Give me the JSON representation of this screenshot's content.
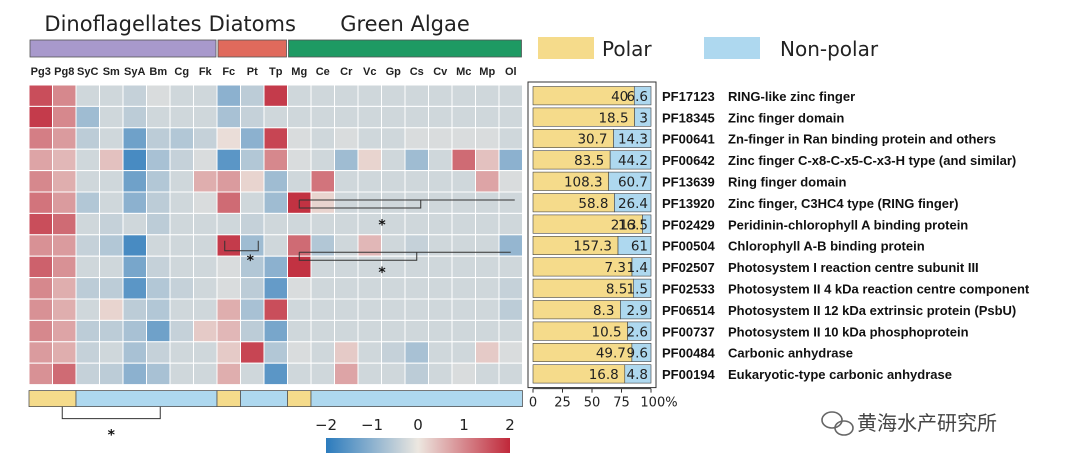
{
  "chart_data": {
    "type": "heatmap",
    "groups": [
      {
        "name": "Dinoflagellates",
        "color": "#a899cc",
        "columns": [
          "Pg3",
          "Pg8",
          "SyC",
          "Sm",
          "SyA",
          "Bm",
          "Cg",
          "Fk"
        ]
      },
      {
        "name": "Diatoms",
        "color": "#e06a5c",
        "columns": [
          "Fc",
          "Pt",
          "Tp"
        ]
      },
      {
        "name": "Green Algae",
        "color": "#1e9a63",
        "columns": [
          "Mg",
          "Ce",
          "Cr",
          "Vc",
          "Gp",
          "Cs",
          "Cv",
          "Mc",
          "Mp",
          "Ol"
        ]
      }
    ],
    "columns": [
      "Pg3",
      "Pg8",
      "SyC",
      "Sm",
      "SyA",
      "Bm",
      "Cg",
      "Fk",
      "Fc",
      "Pt",
      "Tp",
      "Mg",
      "Ce",
      "Cr",
      "Vc",
      "Gp",
      "Cs",
      "Cv",
      "Mc",
      "Mp",
      "Ol"
    ],
    "rows": [
      {
        "pfam": "PF17123",
        "description": "RING-like zinc finger",
        "polar": 40,
        "nonpolar": 6.6,
        "polar_label": "40",
        "nonpolar_label": "6.6"
      },
      {
        "pfam": "PF18345",
        "description": "Zinc finger domain",
        "polar": 18.5,
        "nonpolar": 3,
        "polar_label": "18.5",
        "nonpolar_label": "3"
      },
      {
        "pfam": "PF00641",
        "description": "Zn-finger in Ran binding protein and others",
        "polar": 30.7,
        "nonpolar": 14.3,
        "polar_label": "30.7",
        "nonpolar_label": "14.3"
      },
      {
        "pfam": "PF00642",
        "description": "Zinc finger C-x8-C-x5-C-x3-H type (and similar)",
        "polar": 83.5,
        "nonpolar": 44.2,
        "polar_label": "83.5",
        "nonpolar_label": "44.2"
      },
      {
        "pfam": "PF13639",
        "description": "Ring finger domain",
        "polar": 108.3,
        "nonpolar": 60.7,
        "polar_label": "108.3",
        "nonpolar_label": "60.7"
      },
      {
        "pfam": "PF13920",
        "description": "Zinc finger, C3HC4 type (RING finger)",
        "polar": 58.8,
        "nonpolar": 26.4,
        "polar_label": "58.8",
        "nonpolar_label": "26.4"
      },
      {
        "pfam": "PF02429",
        "description": "Peridinin-chlorophyll A binding protein",
        "polar": 213,
        "nonpolar": 16.5,
        "polar_label": "213",
        "nonpolar_label": "16.5"
      },
      {
        "pfam": "PF00504",
        "description": "Chlorophyll A-B binding protein",
        "polar": 157.3,
        "nonpolar": 61,
        "polar_label": "157.3",
        "nonpolar_label": "61"
      },
      {
        "pfam": "PF02507",
        "description": "Photosystem I reaction centre subunit III",
        "polar": 7.3,
        "nonpolar": 1.4,
        "polar_label": "7.3",
        "nonpolar_label": "1.4"
      },
      {
        "pfam": "PF02533",
        "description": "Photosystem II 4 kDa reaction centre component",
        "polar": 8.5,
        "nonpolar": 1.5,
        "polar_label": "8.5",
        "nonpolar_label": "1.5"
      },
      {
        "pfam": "PF06514",
        "description": "Photosystem II 12 kDa extrinsic protein (PsbU)",
        "polar": 8.3,
        "nonpolar": 2.9,
        "polar_label": "8.3",
        "nonpolar_label": "2.9"
      },
      {
        "pfam": "PF00737",
        "description": "Photosystem II 10 kDa phosphoprotein",
        "polar": 10.5,
        "nonpolar": 2.6,
        "polar_label": "10.5",
        "nonpolar_label": "2.6"
      },
      {
        "pfam": "PF00484",
        "description": "Carbonic anhydrase",
        "polar": 49.7,
        "nonpolar": 9.6,
        "polar_label": "49.7",
        "nonpolar_label": "9.6"
      },
      {
        "pfam": "PF00194",
        "description": "Eukaryotic-type carbonic anhydrase",
        "polar": 16.8,
        "nonpolar": 4.8,
        "polar_label": "16.8",
        "nonpolar_label": "4.8"
      }
    ],
    "matrix": [
      [
        1.6,
        1.0,
        -0.3,
        -0.3,
        -0.4,
        -0.2,
        -0.3,
        -0.3,
        -1.0,
        -0.5,
        1.8,
        -0.3,
        -0.3,
        -0.3,
        -0.3,
        -0.3,
        -0.3,
        -0.3,
        -0.3,
        -0.3,
        -0.3
      ],
      [
        1.8,
        1.0,
        -0.8,
        -0.3,
        -0.5,
        -0.3,
        -0.3,
        -0.3,
        -0.7,
        -0.4,
        -0.3,
        -0.3,
        -0.3,
        -0.3,
        -0.3,
        -0.3,
        -0.3,
        -0.3,
        -0.3,
        -0.3,
        -0.3
      ],
      [
        1.1,
        0.8,
        -0.5,
        -0.3,
        -1.3,
        -0.5,
        -0.6,
        -0.4,
        0.1,
        -1.0,
        1.7,
        -0.2,
        -0.3,
        -0.2,
        -0.3,
        -0.3,
        -0.2,
        -0.2,
        -0.2,
        -0.2,
        -0.3
      ],
      [
        0.7,
        0.5,
        -0.3,
        0.4,
        -1.7,
        -0.7,
        -0.4,
        -0.2,
        -1.5,
        -0.6,
        1.0,
        -0.2,
        -0.3,
        -0.8,
        0.2,
        -0.3,
        -0.8,
        -0.3,
        1.3,
        0.4,
        -1.0
      ],
      [
        1.0,
        0.6,
        -0.3,
        -0.3,
        -1.3,
        -0.6,
        -0.3,
        0.6,
        0.8,
        0.2,
        -0.8,
        -0.3,
        1.2,
        -0.3,
        -0.3,
        -0.3,
        -0.3,
        -0.3,
        -0.3,
        0.7,
        -0.2
      ],
      [
        1.2,
        0.8,
        -0.6,
        -0.3,
        -1.0,
        -0.5,
        -0.3,
        -0.2,
        1.3,
        -0.3,
        -0.8,
        1.9,
        0.2,
        -0.3,
        -0.3,
        -0.3,
        -0.3,
        -0.3,
        -0.3,
        -0.3,
        -0.3
      ],
      [
        1.6,
        1.3,
        -0.3,
        -0.4,
        -0.3,
        -0.5,
        -0.3,
        -0.3,
        -0.3,
        -0.4,
        -0.3,
        -0.3,
        -0.3,
        -0.3,
        -0.3,
        -0.3,
        -0.3,
        -0.3,
        -0.3,
        -0.3,
        -0.3
      ],
      [
        0.9,
        0.8,
        -0.4,
        -0.6,
        -1.7,
        -0.3,
        -0.3,
        -0.3,
        1.8,
        -0.8,
        -0.3,
        1.3,
        -0.6,
        -0.3,
        0.5,
        -0.3,
        -0.4,
        -0.3,
        -0.3,
        -0.3,
        -0.9
      ],
      [
        1.4,
        0.9,
        -0.3,
        -0.3,
        -1.2,
        -0.4,
        -0.3,
        -0.3,
        -0.2,
        -0.6,
        -1.0,
        1.9,
        -0.3,
        -0.3,
        -0.3,
        -0.3,
        -0.3,
        -0.3,
        -0.3,
        -0.3,
        -0.3
      ],
      [
        1.0,
        0.6,
        -0.5,
        -0.5,
        -1.5,
        -0.6,
        -0.4,
        -0.3,
        -0.2,
        -0.5,
        -1.4,
        -0.2,
        -0.3,
        -0.3,
        -0.3,
        -0.3,
        -0.3,
        -0.3,
        -0.3,
        -0.3,
        -0.4
      ],
      [
        0.9,
        0.6,
        -0.3,
        0.2,
        -0.5,
        -0.6,
        -0.3,
        -0.3,
        0.6,
        -0.7,
        1.6,
        -0.3,
        -0.3,
        -0.3,
        -0.3,
        -0.3,
        -0.3,
        -0.3,
        -0.3,
        -0.3,
        -0.5
      ],
      [
        1.0,
        0.7,
        -0.5,
        -0.5,
        -0.7,
        -1.3,
        -0.4,
        0.3,
        0.5,
        -0.5,
        -1.2,
        -0.3,
        -0.3,
        -0.3,
        -0.3,
        -0.3,
        -0.3,
        -0.3,
        -0.3,
        -0.3,
        -0.3
      ],
      [
        0.8,
        0.6,
        -0.4,
        -0.3,
        -0.7,
        -0.4,
        -0.3,
        -0.3,
        0.3,
        1.7,
        -0.6,
        -0.2,
        -0.3,
        0.3,
        -0.3,
        -0.4,
        -0.7,
        -0.3,
        -0.3,
        0.3,
        -0.2
      ],
      [
        0.9,
        1.3,
        -0.4,
        -0.5,
        -1.0,
        -0.7,
        -0.3,
        -0.3,
        0.6,
        -0.3,
        -1.5,
        -0.3,
        -0.3,
        0.7,
        -0.3,
        -0.3,
        -0.5,
        -0.3,
        -0.2,
        -0.3,
        -0.3
      ]
    ],
    "color_scale": {
      "min": -2,
      "max": 2,
      "low_color": "#2b7bbd",
      "mid_color": "#ece7e0",
      "high_color": "#c0283a",
      "ticks": [
        -2,
        -1,
        0,
        1,
        2
      ],
      "tick_labels": [
        "−2",
        "−1",
        "0",
        "1",
        "2"
      ]
    },
    "bottom_annotation": [
      {
        "start": 0,
        "end": 1,
        "class": "polar"
      },
      {
        "start": 2,
        "end": 7,
        "class": "nonpolar"
      },
      {
        "start": 8,
        "end": 8,
        "class": "polar"
      },
      {
        "start": 9,
        "end": 10,
        "class": "nonpolar"
      },
      {
        "start": 11,
        "end": 11,
        "class": "polar"
      },
      {
        "start": 12,
        "end": 20,
        "class": "nonpolar"
      }
    ],
    "legend": [
      {
        "name": "Polar",
        "color": "#f5db8b"
      },
      {
        "name": "Non-polar",
        "color": "#aed8ef"
      }
    ],
    "bar_axis": {
      "min": 0,
      "max": 100,
      "ticks": [
        0,
        25,
        50,
        75,
        100
      ],
      "tick_labels": [
        "0",
        "25",
        "50",
        "75",
        "100%"
      ]
    },
    "significance": [
      {
        "label": "*"
      },
      {
        "label": "*"
      },
      {
        "label": "*"
      },
      {
        "label": "*"
      }
    ]
  },
  "watermark": {
    "text": "黄海水产研究所",
    "icon": "wechat-icon"
  }
}
